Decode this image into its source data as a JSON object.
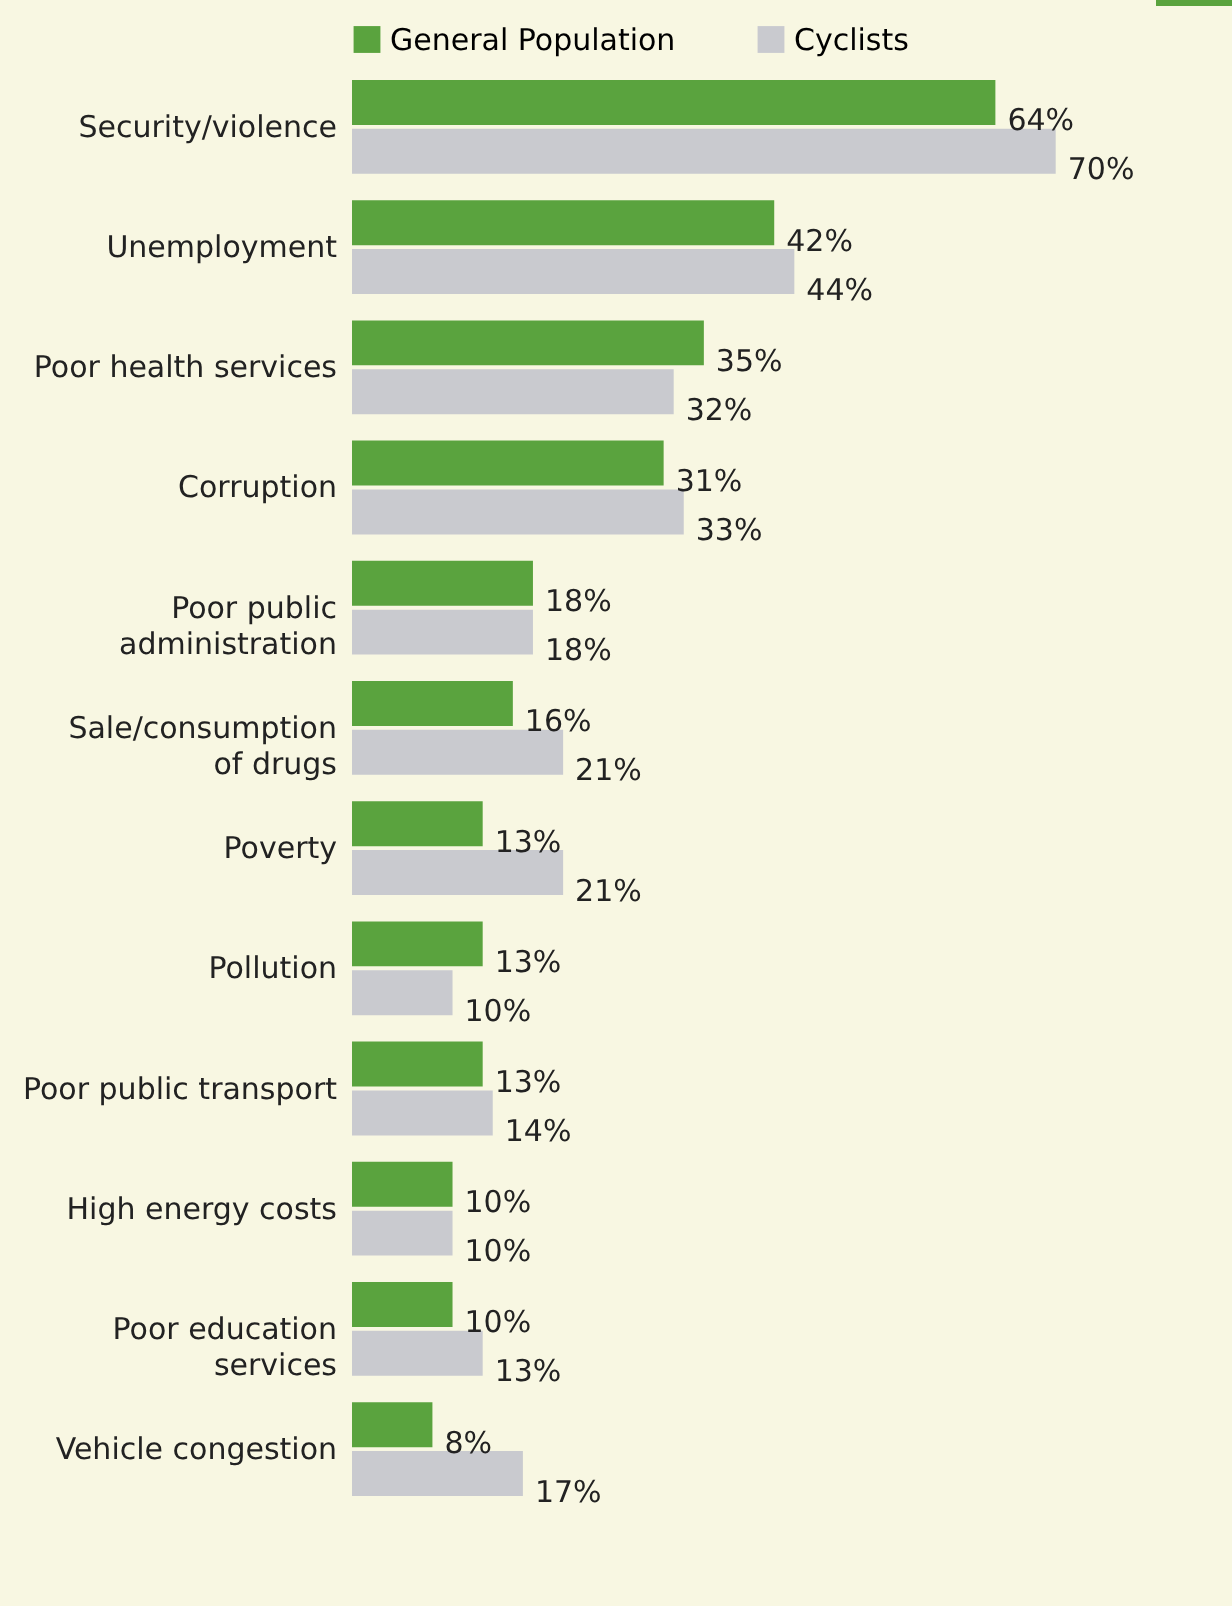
{
  "chart_data": {
    "type": "bar",
    "orientation": "horizontal",
    "legend": "top",
    "categories": [
      "Security/violence",
      "Unemployment",
      "Poor health services",
      "Corruption",
      "Poor public administration",
      "Sale/consumption of drugs",
      "Poverty",
      "Pollution",
      "Poor public transport",
      "High energy costs",
      "Poor education services",
      "Vehicle congestion"
    ],
    "series": [
      {
        "name": "General Population",
        "color": "#5aa33e",
        "values": [
          64,
          42,
          35,
          31,
          18,
          16,
          13,
          13,
          13,
          10,
          10,
          8
        ],
        "value_labels": [
          "64%",
          "42%",
          "35%",
          "31%",
          "18%",
          "16%",
          "13%",
          "13%",
          "13%",
          "10%",
          "10%",
          "8%"
        ]
      },
      {
        "name": "Cyclists",
        "color": "#c9cacf",
        "values": [
          70,
          44,
          32,
          33,
          18,
          21,
          21,
          10,
          14,
          10,
          13,
          17
        ],
        "value_labels": [
          "70%",
          "44%",
          "32%",
          "33%",
          "18%",
          "21%",
          "21%",
          "10%",
          "14%",
          "10%",
          "13%",
          "17%"
        ]
      }
    ]
  }
}
